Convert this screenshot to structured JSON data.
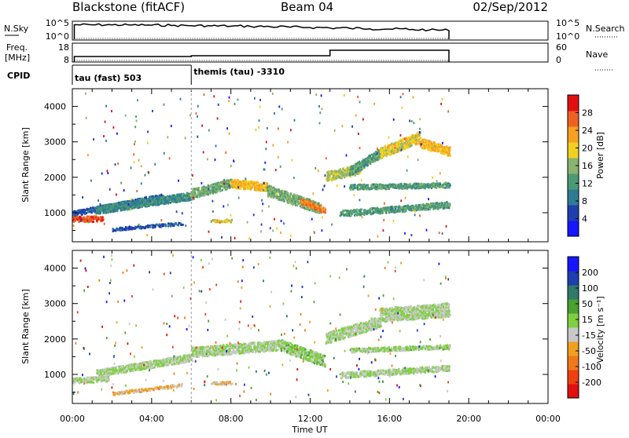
{
  "header": {
    "station": "Blackstone (fitACF)",
    "beam": "Beam 04",
    "date": "02/Sep/2012"
  },
  "nsky_panel": {
    "left_label": "N.Sky",
    "left_ticks": [
      "10^5",
      "10^0"
    ],
    "right_ticks": [
      "10^5",
      "10^0"
    ],
    "right_label": "N.Search"
  },
  "freq_panel": {
    "left_label_top": "Freq.",
    "left_label_bottom": "[MHz]",
    "left_ticks": [
      "18",
      "8"
    ],
    "right_ticks": [
      "60",
      "0"
    ],
    "right_label": "Nave"
  },
  "cpid_panel": {
    "label": "CPID",
    "segments": [
      {
        "text": "tau (fast) 503",
        "start_hour": 0.0,
        "end_hour": 6.0
      },
      {
        "text": "themis (tau) -3310",
        "start_hour": 6.0,
        "end_hour": 19.0
      }
    ]
  },
  "x_axis": {
    "label": "Time UT",
    "ticks": [
      "00:00",
      "04:00",
      "08:00",
      "12:00",
      "16:00",
      "20:00",
      "00:00"
    ],
    "range_hours": [
      0,
      24
    ]
  },
  "power_panel": {
    "ylabel": "Slant Range [km]",
    "yticks": [
      "1000",
      "2000",
      "3000",
      "4000"
    ],
    "colorbar_label": "Power [dB]",
    "colorbar_ticks": [
      "28",
      "24",
      "20",
      "16",
      "12",
      "8",
      "4"
    ]
  },
  "velocity_panel": {
    "ylabel": "Slant Range [km]",
    "yticks": [
      "1000",
      "2000",
      "3000",
      "4000"
    ],
    "colorbar_label": "Velocity [m s⁻¹]",
    "colorbar_ticks": [
      "200",
      "100",
      "50",
      "15",
      "-15",
      "-50",
      "-100",
      "-200"
    ]
  },
  "chart_data": [
    {
      "type": "line",
      "name": "sky noise",
      "x_range_hours": [
        0,
        24
      ],
      "scale": "log",
      "ylim": [
        1,
        100000
      ],
      "points": [
        [
          0.1,
          25000.0
        ],
        [
          1,
          24000.0
        ],
        [
          2,
          22000.0
        ],
        [
          3,
          20000.0
        ],
        [
          4,
          18000.0
        ],
        [
          5,
          15000.0
        ],
        [
          6,
          13000.0
        ],
        [
          7,
          11000.0
        ],
        [
          8,
          9000.0
        ],
        [
          9,
          7500.0
        ],
        [
          10,
          6000.0
        ],
        [
          11,
          4500.0
        ],
        [
          12,
          3500.0
        ],
        [
          13,
          2600.0
        ],
        [
          14,
          2000.0
        ],
        [
          15,
          1500.0
        ],
        [
          16,
          1200.0
        ],
        [
          17,
          800
        ],
        [
          18,
          600
        ],
        [
          19,
          400
        ]
      ],
      "search_noise_level": 1
    },
    {
      "type": "line",
      "name": "frequency",
      "x_range_hours": [
        0,
        24
      ],
      "ylim": [
        8,
        18
      ],
      "segments": [
        {
          "start": 0.1,
          "end": 6.0,
          "value": 10.5
        },
        {
          "start": 6.0,
          "end": 13.0,
          "value": 11.0
        },
        {
          "start": 13.0,
          "end": 19.0,
          "value": 14.5
        }
      ],
      "nave_level": 0
    },
    {
      "type": "heatmap",
      "name": "power",
      "x_range_hours": [
        0,
        24
      ],
      "ylim": [
        180,
        4500
      ],
      "color_scale": {
        "min": 0,
        "max": 30,
        "unit": "dB",
        "colors": [
          "#1515ff",
          "#1e3fae",
          "#2f7b94",
          "#4b9a74",
          "#89b36f",
          "#f0d020",
          "#f7a020",
          "#f06020",
          "#e01010"
        ]
      },
      "bands": [
        {
          "t": [
            0.0,
            1.5
          ],
          "r": [
            [
              850,
              850
            ]
          ],
          "width": 160,
          "value": 26
        },
        {
          "t": [
            0.0,
            4.5
          ],
          "r": [
            [
              1000,
              1480
            ]
          ],
          "width": 140,
          "value": 6
        },
        {
          "t": [
            1.2,
            6.0
          ],
          "r": [
            [
              1100,
              1500
            ]
          ],
          "width": 220,
          "value": 10
        },
        {
          "t": [
            2.0,
            5.5
          ],
          "r": [
            [
              550,
              720
            ]
          ],
          "width": 80,
          "value": 6
        },
        {
          "t": [
            6.0,
            8.0
          ],
          "r": [
            [
              1550,
              1850
            ]
          ],
          "width": 260,
          "value": 14
        },
        {
          "t": [
            8.0,
            9.8
          ],
          "r": [
            [
              1850,
              1750
            ]
          ],
          "width": 240,
          "value": 20
        },
        {
          "t": [
            9.8,
            12.5
          ],
          "r": [
            [
              1650,
              1150
            ]
          ],
          "width": 300,
          "value": 14
        },
        {
          "t": [
            11.5,
            12.7
          ],
          "r": [
            [
              1350,
              1100
            ]
          ],
          "width": 160,
          "value": 24
        },
        {
          "t": [
            12.8,
            14.5
          ],
          "r": [
            [
              2050,
              2250
            ]
          ],
          "width": 260,
          "value": 16
        },
        {
          "t": [
            14.0,
            15.5
          ],
          "r": [
            [
              2200,
              2700
            ]
          ],
          "width": 260,
          "value": 12
        },
        {
          "t": [
            15.5,
            17.5
          ],
          "r": [
            [
              2700,
              3150
            ]
          ],
          "width": 300,
          "value": 18
        },
        {
          "t": [
            17.5,
            19.0
          ],
          "r": [
            [
              3000,
              2750
            ]
          ],
          "width": 260,
          "value": 20
        },
        {
          "t": [
            14.0,
            19.0
          ],
          "r": [
            [
              1750,
              1800
            ]
          ],
          "width": 140,
          "value": 12
        },
        {
          "t": [
            13.5,
            19.0
          ],
          "r": [
            [
              1000,
              1250
            ]
          ],
          "width": 170,
          "value": 12
        },
        {
          "t": [
            7.0,
            8.0
          ],
          "r": [
            [
              800,
              800
            ]
          ],
          "width": 80,
          "value": 18
        }
      ]
    },
    {
      "type": "heatmap",
      "name": "velocity",
      "x_range_hours": [
        0,
        24
      ],
      "ylim": [
        180,
        4500
      ],
      "color_scale": {
        "min": -250,
        "max": 250,
        "unit": "m/s",
        "colors": [
          "#e01010",
          "#f04010",
          "#f07818",
          "#f0a020",
          "#c8c8c8",
          "#7ed040",
          "#4aa030",
          "#2f7a6a",
          "#1e3fae",
          "#1515ff"
        ]
      },
      "bands": [
        {
          "t": [
            0.0,
            1.8
          ],
          "r": [
            [
              850,
              900
            ]
          ],
          "width": 160,
          "value": 0
        },
        {
          "t": [
            1.2,
            6.0
          ],
          "r": [
            [
              1050,
              1500
            ]
          ],
          "width": 200,
          "value": 0
        },
        {
          "t": [
            2.0,
            5.5
          ],
          "r": [
            [
              480,
              720
            ]
          ],
          "width": 80,
          "value": -60
        },
        {
          "t": [
            7.0,
            8.0
          ],
          "r": [
            [
              780,
              780
            ]
          ],
          "width": 80,
          "value": -60
        },
        {
          "t": [
            6.0,
            10.5
          ],
          "r": [
            [
              1650,
              1850
            ]
          ],
          "width": 280,
          "value": 0
        },
        {
          "t": [
            10.5,
            12.7
          ],
          "r": [
            [
              1850,
              1400
            ]
          ],
          "width": 320,
          "value": 20
        },
        {
          "t": [
            12.8,
            15.5
          ],
          "r": [
            [
              2050,
              2500
            ]
          ],
          "width": 300,
          "value": 0
        },
        {
          "t": [
            15.5,
            19.0
          ],
          "r": [
            [
              2700,
              2850
            ]
          ],
          "width": 380,
          "value": 0
        },
        {
          "t": [
            14.0,
            19.0
          ],
          "r": [
            [
              1700,
              1800
            ]
          ],
          "width": 120,
          "value": 10
        },
        {
          "t": [
            13.5,
            19.0
          ],
          "r": [
            [
              1000,
              1200
            ]
          ],
          "width": 160,
          "value": 0
        }
      ]
    }
  ]
}
